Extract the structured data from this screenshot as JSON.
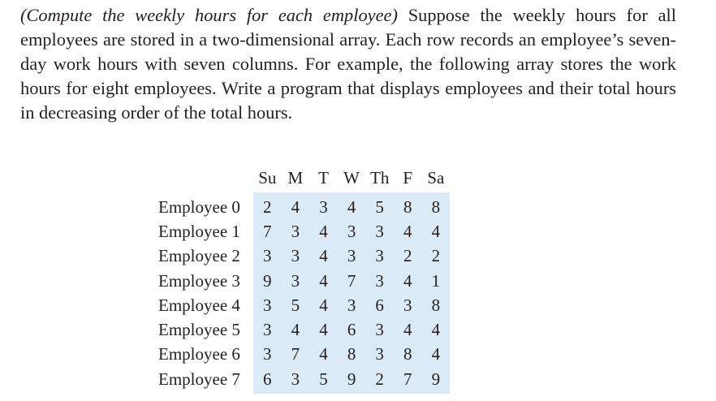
{
  "exercise": {
    "title": "(Compute the weekly hours for each employee)",
    "body": " Suppose the weekly hours for all employees are stored in a two-dimensional array. Each row records an employee’s seven-day work hours with seven columns. For example, the following array stores the work hours for eight employees. Write a program that displays employ­ees and their total hours in decreasing order of the total hours."
  },
  "table": {
    "columns": [
      "Su",
      "M",
      "T",
      "W",
      "Th",
      "F",
      "Sa"
    ],
    "rows": [
      {
        "label": "Employee 0",
        "values": [
          "2",
          "4",
          "3",
          "4",
          "5",
          "8",
          "8"
        ]
      },
      {
        "label": "Employee 1",
        "values": [
          "7",
          "3",
          "4",
          "3",
          "3",
          "4",
          "4"
        ]
      },
      {
        "label": "Employee 2",
        "values": [
          "3",
          "3",
          "4",
          "3",
          "3",
          "2",
          "2"
        ]
      },
      {
        "label": "Employee 3",
        "values": [
          "9",
          "3",
          "4",
          "7",
          "3",
          "4",
          "1"
        ]
      },
      {
        "label": "Employee 4",
        "values": [
          "3",
          "5",
          "4",
          "3",
          "6",
          "3",
          "8"
        ]
      },
      {
        "label": "Employee 5",
        "values": [
          "3",
          "4",
          "4",
          "6",
          "3",
          "4",
          "4"
        ]
      },
      {
        "label": "Employee 6",
        "values": [
          "3",
          "7",
          "4",
          "8",
          "3",
          "8",
          "4"
        ]
      },
      {
        "label": "Employee 7",
        "values": [
          "6",
          "3",
          "5",
          "9",
          "2",
          "7",
          "9"
        ]
      }
    ]
  },
  "colors": {
    "text": "#231f20",
    "table_background": "#daeaf7"
  }
}
